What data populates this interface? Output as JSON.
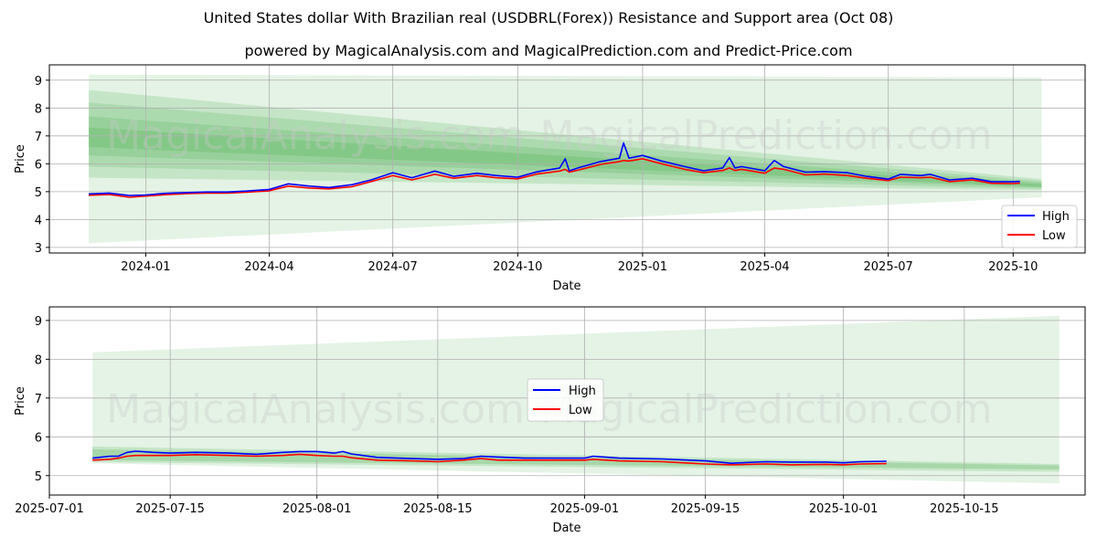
{
  "chart_data": [
    {
      "type": "line",
      "title": "United States dollar With Brazilian real (USDBRL(Forex)) Resistance and Support area (Oct 08)",
      "subtitle": "powered by MagicalAnalysis.com and MagicalPrediction.com and Predict-Price.com",
      "xlabel": "Date",
      "ylabel": "Price",
      "xlim": [
        "2023-10-22",
        "2025-11-23"
      ],
      "ylim": [
        2.8,
        9.55
      ],
      "xticks": [
        "2024-01",
        "2024-04",
        "2024-07",
        "2024-10",
        "2025-01",
        "2025-04",
        "2025-07",
        "2025-10"
      ],
      "xtick_dates": [
        "2024-01-01",
        "2024-04-01",
        "2024-07-01",
        "2024-10-01",
        "2025-01-01",
        "2025-04-01",
        "2025-07-01",
        "2025-10-01"
      ],
      "yticks": [
        3,
        4,
        5,
        6,
        7,
        8,
        9
      ],
      "grid": true,
      "legend_position": "lower-right",
      "series": [
        {
          "name": "High",
          "color": "#0000ff",
          "points": [
            [
              "2023-11-20",
              4.92
            ],
            [
              "2023-12-05",
              4.95
            ],
            [
              "2023-12-20",
              4.86
            ],
            [
              "2024-01-01",
              4.88
            ],
            [
              "2024-01-15",
              4.94
            ],
            [
              "2024-02-01",
              4.97
            ],
            [
              "2024-02-15",
              4.99
            ],
            [
              "2024-03-01",
              4.99
            ],
            [
              "2024-03-15",
              5.02
            ],
            [
              "2024-04-01",
              5.08
            ],
            [
              "2024-04-15",
              5.28
            ],
            [
              "2024-05-01",
              5.2
            ],
            [
              "2024-05-15",
              5.15
            ],
            [
              "2024-06-01",
              5.25
            ],
            [
              "2024-06-15",
              5.42
            ],
            [
              "2024-07-01",
              5.68
            ],
            [
              "2024-07-15",
              5.5
            ],
            [
              "2024-08-01",
              5.74
            ],
            [
              "2024-08-15",
              5.55
            ],
            [
              "2024-09-01",
              5.66
            ],
            [
              "2024-09-15",
              5.58
            ],
            [
              "2024-10-01",
              5.52
            ],
            [
              "2024-10-15",
              5.71
            ],
            [
              "2024-11-01",
              5.85
            ],
            [
              "2024-11-05",
              6.18
            ],
            [
              "2024-11-08",
              5.75
            ],
            [
              "2024-11-15",
              5.86
            ],
            [
              "2024-12-01",
              6.08
            ],
            [
              "2024-12-15",
              6.2
            ],
            [
              "2024-12-18",
              6.75
            ],
            [
              "2024-12-22",
              6.2
            ],
            [
              "2025-01-01",
              6.3
            ],
            [
              "2025-01-15",
              6.1
            ],
            [
              "2025-02-01",
              5.9
            ],
            [
              "2025-02-15",
              5.75
            ],
            [
              "2025-03-01",
              5.85
            ],
            [
              "2025-03-06",
              6.22
            ],
            [
              "2025-03-10",
              5.85
            ],
            [
              "2025-03-15",
              5.9
            ],
            [
              "2025-04-01",
              5.75
            ],
            [
              "2025-04-08",
              6.12
            ],
            [
              "2025-04-15",
              5.9
            ],
            [
              "2025-05-01",
              5.7
            ],
            [
              "2025-05-15",
              5.72
            ],
            [
              "2025-06-01",
              5.68
            ],
            [
              "2025-06-15",
              5.55
            ],
            [
              "2025-07-01",
              5.45
            ],
            [
              "2025-07-10",
              5.62
            ],
            [
              "2025-07-25",
              5.58
            ],
            [
              "2025-08-01",
              5.62
            ],
            [
              "2025-08-15",
              5.42
            ],
            [
              "2025-09-01",
              5.48
            ],
            [
              "2025-09-15",
              5.36
            ],
            [
              "2025-10-01",
              5.36
            ],
            [
              "2025-10-06",
              5.37
            ]
          ]
        },
        {
          "name": "Low",
          "color": "#ff0000",
          "points": [
            [
              "2023-11-20",
              4.87
            ],
            [
              "2023-12-05",
              4.9
            ],
            [
              "2023-12-20",
              4.8
            ],
            [
              "2024-01-01",
              4.84
            ],
            [
              "2024-01-15",
              4.89
            ],
            [
              "2024-02-01",
              4.93
            ],
            [
              "2024-02-15",
              4.95
            ],
            [
              "2024-03-01",
              4.95
            ],
            [
              "2024-03-15",
              4.98
            ],
            [
              "2024-04-01",
              5.03
            ],
            [
              "2024-04-15",
              5.2
            ],
            [
              "2024-05-01",
              5.13
            ],
            [
              "2024-05-15",
              5.1
            ],
            [
              "2024-06-01",
              5.18
            ],
            [
              "2024-06-15",
              5.36
            ],
            [
              "2024-07-01",
              5.58
            ],
            [
              "2024-07-15",
              5.42
            ],
            [
              "2024-08-01",
              5.62
            ],
            [
              "2024-08-15",
              5.48
            ],
            [
              "2024-09-01",
              5.58
            ],
            [
              "2024-09-15",
              5.5
            ],
            [
              "2024-10-01",
              5.46
            ],
            [
              "2024-10-15",
              5.63
            ],
            [
              "2024-11-01",
              5.74
            ],
            [
              "2024-11-05",
              5.8
            ],
            [
              "2024-11-08",
              5.7
            ],
            [
              "2024-11-15",
              5.78
            ],
            [
              "2024-12-01",
              5.98
            ],
            [
              "2024-12-15",
              6.08
            ],
            [
              "2024-12-18",
              6.12
            ],
            [
              "2024-12-22",
              6.1
            ],
            [
              "2025-01-01",
              6.18
            ],
            [
              "2025-01-15",
              6.0
            ],
            [
              "2025-02-01",
              5.8
            ],
            [
              "2025-02-15",
              5.68
            ],
            [
              "2025-03-01",
              5.76
            ],
            [
              "2025-03-06",
              5.85
            ],
            [
              "2025-03-10",
              5.76
            ],
            [
              "2025-03-15",
              5.8
            ],
            [
              "2025-04-01",
              5.66
            ],
            [
              "2025-04-08",
              5.85
            ],
            [
              "2025-04-15",
              5.8
            ],
            [
              "2025-05-01",
              5.6
            ],
            [
              "2025-05-15",
              5.63
            ],
            [
              "2025-06-01",
              5.58
            ],
            [
              "2025-06-15",
              5.48
            ],
            [
              "2025-07-01",
              5.4
            ],
            [
              "2025-07-10",
              5.52
            ],
            [
              "2025-07-25",
              5.5
            ],
            [
              "2025-08-01",
              5.52
            ],
            [
              "2025-08-15",
              5.36
            ],
            [
              "2025-09-01",
              5.42
            ],
            [
              "2025-09-15",
              5.3
            ],
            [
              "2025-10-01",
              5.29
            ],
            [
              "2025-10-06",
              5.31
            ]
          ]
        }
      ],
      "bands": {
        "start": "2023-11-20",
        "end": "2025-10-22",
        "color": "#4caf50",
        "items": [
          {
            "y0": [
              3.15,
              9.2
            ],
            "y1": [
              4.8,
              9.1
            ],
            "opacity": 0.15
          },
          {
            "y0": [
              5.5,
              8.65
            ],
            "y1": [
              5.05,
              5.45
            ],
            "opacity": 0.2
          },
          {
            "y0": [
              5.9,
              8.2
            ],
            "y1": [
              5.1,
              5.38
            ],
            "opacity": 0.2
          },
          {
            "y0": [
              6.3,
              7.7
            ],
            "y1": [
              5.15,
              5.32
            ],
            "opacity": 0.22
          },
          {
            "y0": [
              6.6,
              7.3
            ],
            "y1": [
              5.18,
              5.26
            ],
            "opacity": 0.25
          }
        ]
      }
    },
    {
      "type": "line",
      "xlabel": "Date",
      "ylabel": "Price",
      "xlim": [
        "2025-07-01",
        "2025-10-29"
      ],
      "ylim": [
        4.5,
        9.35
      ],
      "xticks": [
        "2025-07-01",
        "2025-07-15",
        "2025-08-01",
        "2025-08-15",
        "2025-09-01",
        "2025-09-15",
        "2025-10-01",
        "2025-10-15"
      ],
      "xtick_dates": [
        "2025-07-01",
        "2025-07-15",
        "2025-08-01",
        "2025-08-15",
        "2025-09-01",
        "2025-09-15",
        "2025-10-01",
        "2025-10-15"
      ],
      "yticks": [
        5,
        6,
        7,
        8,
        9
      ],
      "grid": true,
      "legend_position": "center",
      "series": [
        {
          "name": "High",
          "color": "#0000ff",
          "points": [
            [
              "2025-07-06",
              5.45
            ],
            [
              "2025-07-08",
              5.5
            ],
            [
              "2025-07-09",
              5.5
            ],
            [
              "2025-07-10",
              5.6
            ],
            [
              "2025-07-11",
              5.63
            ],
            [
              "2025-07-13",
              5.6
            ],
            [
              "2025-07-15",
              5.58
            ],
            [
              "2025-07-18",
              5.6
            ],
            [
              "2025-07-22",
              5.58
            ],
            [
              "2025-07-25",
              5.55
            ],
            [
              "2025-07-28",
              5.6
            ],
            [
              "2025-07-30",
              5.62
            ],
            [
              "2025-08-01",
              5.62
            ],
            [
              "2025-08-03",
              5.58
            ],
            [
              "2025-08-04",
              5.62
            ],
            [
              "2025-08-05",
              5.56
            ],
            [
              "2025-08-08",
              5.47
            ],
            [
              "2025-08-12",
              5.44
            ],
            [
              "2025-08-15",
              5.42
            ],
            [
              "2025-08-18",
              5.44
            ],
            [
              "2025-08-20",
              5.5
            ],
            [
              "2025-08-22",
              5.48
            ],
            [
              "2025-08-25",
              5.45
            ],
            [
              "2025-08-28",
              5.45
            ],
            [
              "2025-09-01",
              5.45
            ],
            [
              "2025-09-02",
              5.5
            ],
            [
              "2025-09-05",
              5.45
            ],
            [
              "2025-09-10",
              5.43
            ],
            [
              "2025-09-15",
              5.38
            ],
            [
              "2025-09-18",
              5.32
            ],
            [
              "2025-09-22",
              5.36
            ],
            [
              "2025-09-25",
              5.35
            ],
            [
              "2025-09-29",
              5.35
            ],
            [
              "2025-10-01",
              5.33
            ],
            [
              "2025-10-03",
              5.36
            ],
            [
              "2025-10-06",
              5.37
            ]
          ]
        },
        {
          "name": "Low",
          "color": "#ff0000",
          "points": [
            [
              "2025-07-06",
              5.4
            ],
            [
              "2025-07-08",
              5.42
            ],
            [
              "2025-07-09",
              5.45
            ],
            [
              "2025-07-10",
              5.5
            ],
            [
              "2025-07-11",
              5.52
            ],
            [
              "2025-07-13",
              5.52
            ],
            [
              "2025-07-15",
              5.52
            ],
            [
              "2025-07-18",
              5.54
            ],
            [
              "2025-07-22",
              5.52
            ],
            [
              "2025-07-25",
              5.5
            ],
            [
              "2025-07-28",
              5.52
            ],
            [
              "2025-07-30",
              5.55
            ],
            [
              "2025-08-01",
              5.52
            ],
            [
              "2025-08-03",
              5.5
            ],
            [
              "2025-08-04",
              5.5
            ],
            [
              "2025-08-05",
              5.46
            ],
            [
              "2025-08-08",
              5.4
            ],
            [
              "2025-08-12",
              5.38
            ],
            [
              "2025-08-15",
              5.36
            ],
            [
              "2025-08-18",
              5.4
            ],
            [
              "2025-08-20",
              5.44
            ],
            [
              "2025-08-22",
              5.4
            ],
            [
              "2025-08-25",
              5.4
            ],
            [
              "2025-08-28",
              5.4
            ],
            [
              "2025-09-01",
              5.4
            ],
            [
              "2025-09-02",
              5.42
            ],
            [
              "2025-09-05",
              5.38
            ],
            [
              "2025-09-10",
              5.36
            ],
            [
              "2025-09-15",
              5.3
            ],
            [
              "2025-09-18",
              5.28
            ],
            [
              "2025-09-22",
              5.3
            ],
            [
              "2025-09-25",
              5.28
            ],
            [
              "2025-09-29",
              5.29
            ],
            [
              "2025-10-01",
              5.28
            ],
            [
              "2025-10-03",
              5.3
            ],
            [
              "2025-10-06",
              5.31
            ]
          ]
        }
      ],
      "bands": {
        "start": "2025-07-06",
        "end": "2025-10-26",
        "color": "#4caf50",
        "items": [
          {
            "y0": [
              5.32,
              8.18
            ],
            "y1": [
              4.8,
              9.12
            ],
            "opacity": 0.15
          },
          {
            "y0": [
              5.35,
              5.75
            ],
            "y1": [
              5.1,
              5.3
            ],
            "opacity": 0.2
          },
          {
            "y0": [
              5.4,
              5.68
            ],
            "y1": [
              5.16,
              5.26
            ],
            "opacity": 0.25
          }
        ]
      }
    }
  ],
  "watermarks": [
    {
      "text": "MagicalAnalysis.com"
    },
    {
      "text": "MagicalPrediction.com"
    }
  ]
}
